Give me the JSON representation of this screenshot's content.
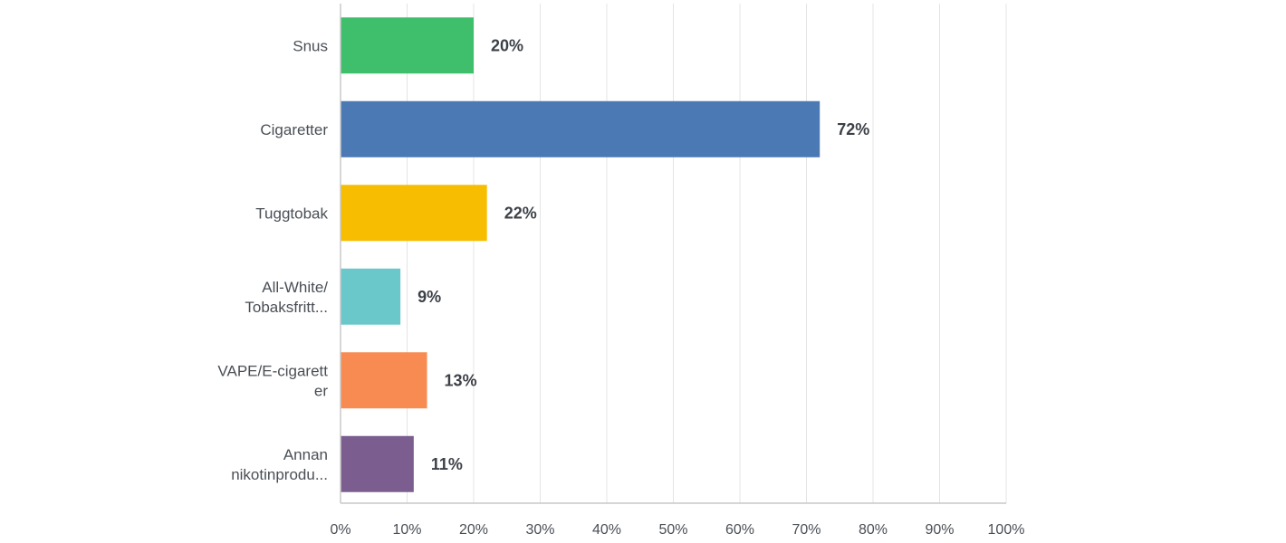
{
  "chart_data": {
    "type": "bar",
    "orientation": "horizontal",
    "categories": [
      [
        "Snus"
      ],
      [
        "Cigaretter"
      ],
      [
        "Tuggtobak"
      ],
      [
        "All-White/",
        "Tobaksfritt..."
      ],
      [
        "VAPE/E-cigarett",
        "er"
      ],
      [
        "Annan",
        "nikotinprodu..."
      ]
    ],
    "values": [
      20,
      72,
      22,
      9,
      13,
      11
    ],
    "value_labels": [
      "20%",
      "72%",
      "22%",
      "9%",
      "13%",
      "11%"
    ],
    "colors": [
      "#3fbf6b",
      "#4a79b4",
      "#f7bd00",
      "#6ac8cb",
      "#f88b52",
      "#7b5e8f"
    ],
    "xlim": [
      0,
      100
    ],
    "x_ticks": [
      "0%",
      "10%",
      "20%",
      "30%",
      "40%",
      "50%",
      "60%",
      "70%",
      "80%",
      "90%",
      "100%"
    ],
    "grid": true,
    "title": "",
    "xlabel": "",
    "ylabel": ""
  }
}
